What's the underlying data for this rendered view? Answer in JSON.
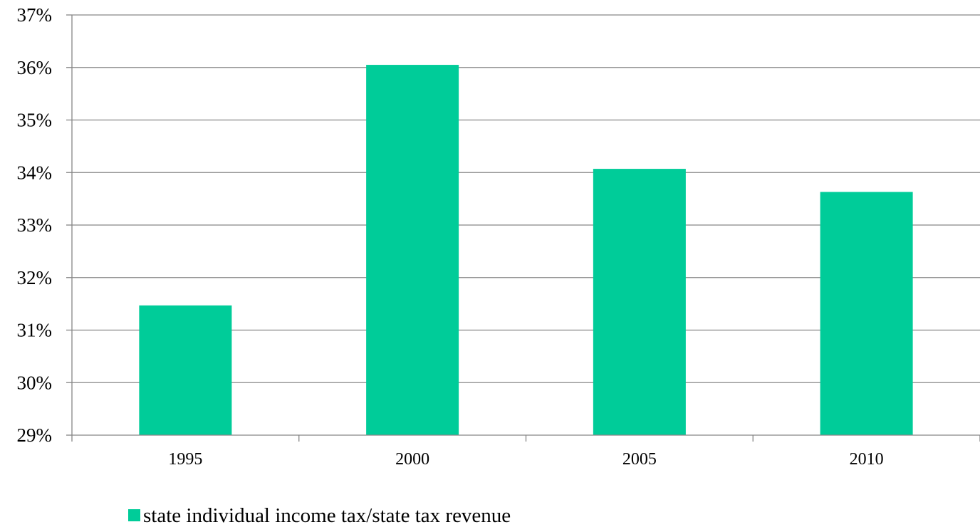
{
  "chart_data": {
    "type": "bar",
    "categories": [
      "1995",
      "2000",
      "2005",
      "2010"
    ],
    "series": [
      {
        "name": "state individual income tax/state tax revenue",
        "values": [
          31.47,
          36.05,
          34.07,
          33.63
        ],
        "color": "#00CC99"
      }
    ],
    "title": "",
    "xlabel": "",
    "ylabel": "",
    "ylim": [
      29,
      37
    ],
    "y_ticks": [
      29,
      30,
      31,
      32,
      33,
      34,
      35,
      36,
      37
    ],
    "y_tick_suffix": "%",
    "grid": true,
    "gridline_color": "#868686",
    "legend": "bottom"
  }
}
